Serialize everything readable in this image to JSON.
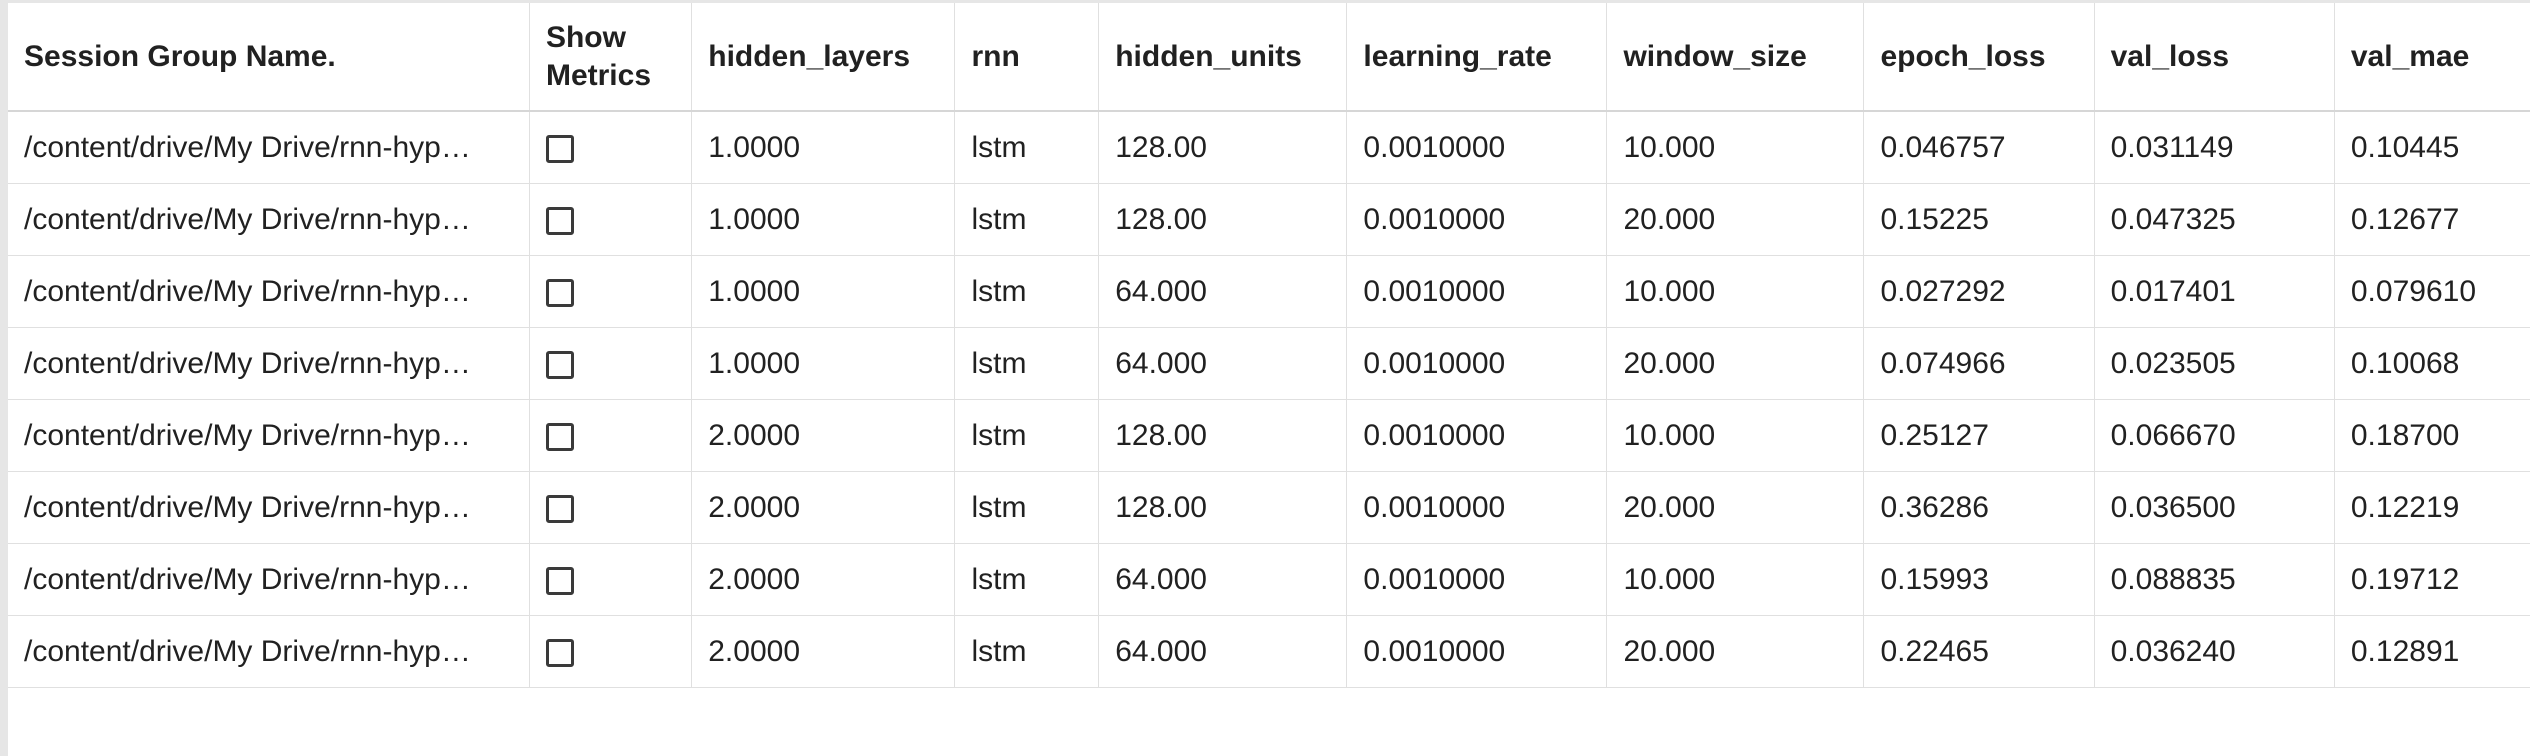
{
  "table": {
    "headers": {
      "name": "Session Group Name.",
      "show_metrics_line1": "Show",
      "show_metrics_line2": "Metrics",
      "hidden_layers": "hidden_layers",
      "rnn": "rnn",
      "hidden_units": "hidden_units",
      "learning_rate": "learning_rate",
      "window_size": "window_size",
      "epoch_loss": "epoch_loss",
      "val_loss": "val_loss",
      "val_mae": "val_mae"
    },
    "rows": [
      {
        "name": "/content/drive/My Drive/rnn-hyp…",
        "show_metrics": false,
        "hidden_layers": "1.0000",
        "rnn": "lstm",
        "hidden_units": "128.00",
        "learning_rate": "0.0010000",
        "window_size": "10.000",
        "epoch_loss": "0.046757",
        "val_loss": "0.031149",
        "val_mae": "0.10445"
      },
      {
        "name": "/content/drive/My Drive/rnn-hyp…",
        "show_metrics": false,
        "hidden_layers": "1.0000",
        "rnn": "lstm",
        "hidden_units": "128.00",
        "learning_rate": "0.0010000",
        "window_size": "20.000",
        "epoch_loss": "0.15225",
        "val_loss": "0.047325",
        "val_mae": "0.12677"
      },
      {
        "name": "/content/drive/My Drive/rnn-hyp…",
        "show_metrics": false,
        "hidden_layers": "1.0000",
        "rnn": "lstm",
        "hidden_units": "64.000",
        "learning_rate": "0.0010000",
        "window_size": "10.000",
        "epoch_loss": "0.027292",
        "val_loss": "0.017401",
        "val_mae": "0.079610"
      },
      {
        "name": "/content/drive/My Drive/rnn-hyp…",
        "show_metrics": false,
        "hidden_layers": "1.0000",
        "rnn": "lstm",
        "hidden_units": "64.000",
        "learning_rate": "0.0010000",
        "window_size": "20.000",
        "epoch_loss": "0.074966",
        "val_loss": "0.023505",
        "val_mae": "0.10068"
      },
      {
        "name": "/content/drive/My Drive/rnn-hyp…",
        "show_metrics": false,
        "hidden_layers": "2.0000",
        "rnn": "lstm",
        "hidden_units": "128.00",
        "learning_rate": "0.0010000",
        "window_size": "10.000",
        "epoch_loss": "0.25127",
        "val_loss": "0.066670",
        "val_mae": "0.18700"
      },
      {
        "name": "/content/drive/My Drive/rnn-hyp…",
        "show_metrics": false,
        "hidden_layers": "2.0000",
        "rnn": "lstm",
        "hidden_units": "128.00",
        "learning_rate": "0.0010000",
        "window_size": "20.000",
        "epoch_loss": "0.36286",
        "val_loss": "0.036500",
        "val_mae": "0.12219"
      },
      {
        "name": "/content/drive/My Drive/rnn-hyp…",
        "show_metrics": false,
        "hidden_layers": "2.0000",
        "rnn": "lstm",
        "hidden_units": "64.000",
        "learning_rate": "0.0010000",
        "window_size": "10.000",
        "epoch_loss": "0.15993",
        "val_loss": "0.088835",
        "val_mae": "0.19712"
      },
      {
        "name": "/content/drive/My Drive/rnn-hyp…",
        "show_metrics": false,
        "hidden_layers": "2.0000",
        "rnn": "lstm",
        "hidden_units": "64.000",
        "learning_rate": "0.0010000",
        "window_size": "20.000",
        "epoch_loss": "0.22465",
        "val_loss": "0.036240",
        "val_mae": "0.12891"
      }
    ]
  }
}
